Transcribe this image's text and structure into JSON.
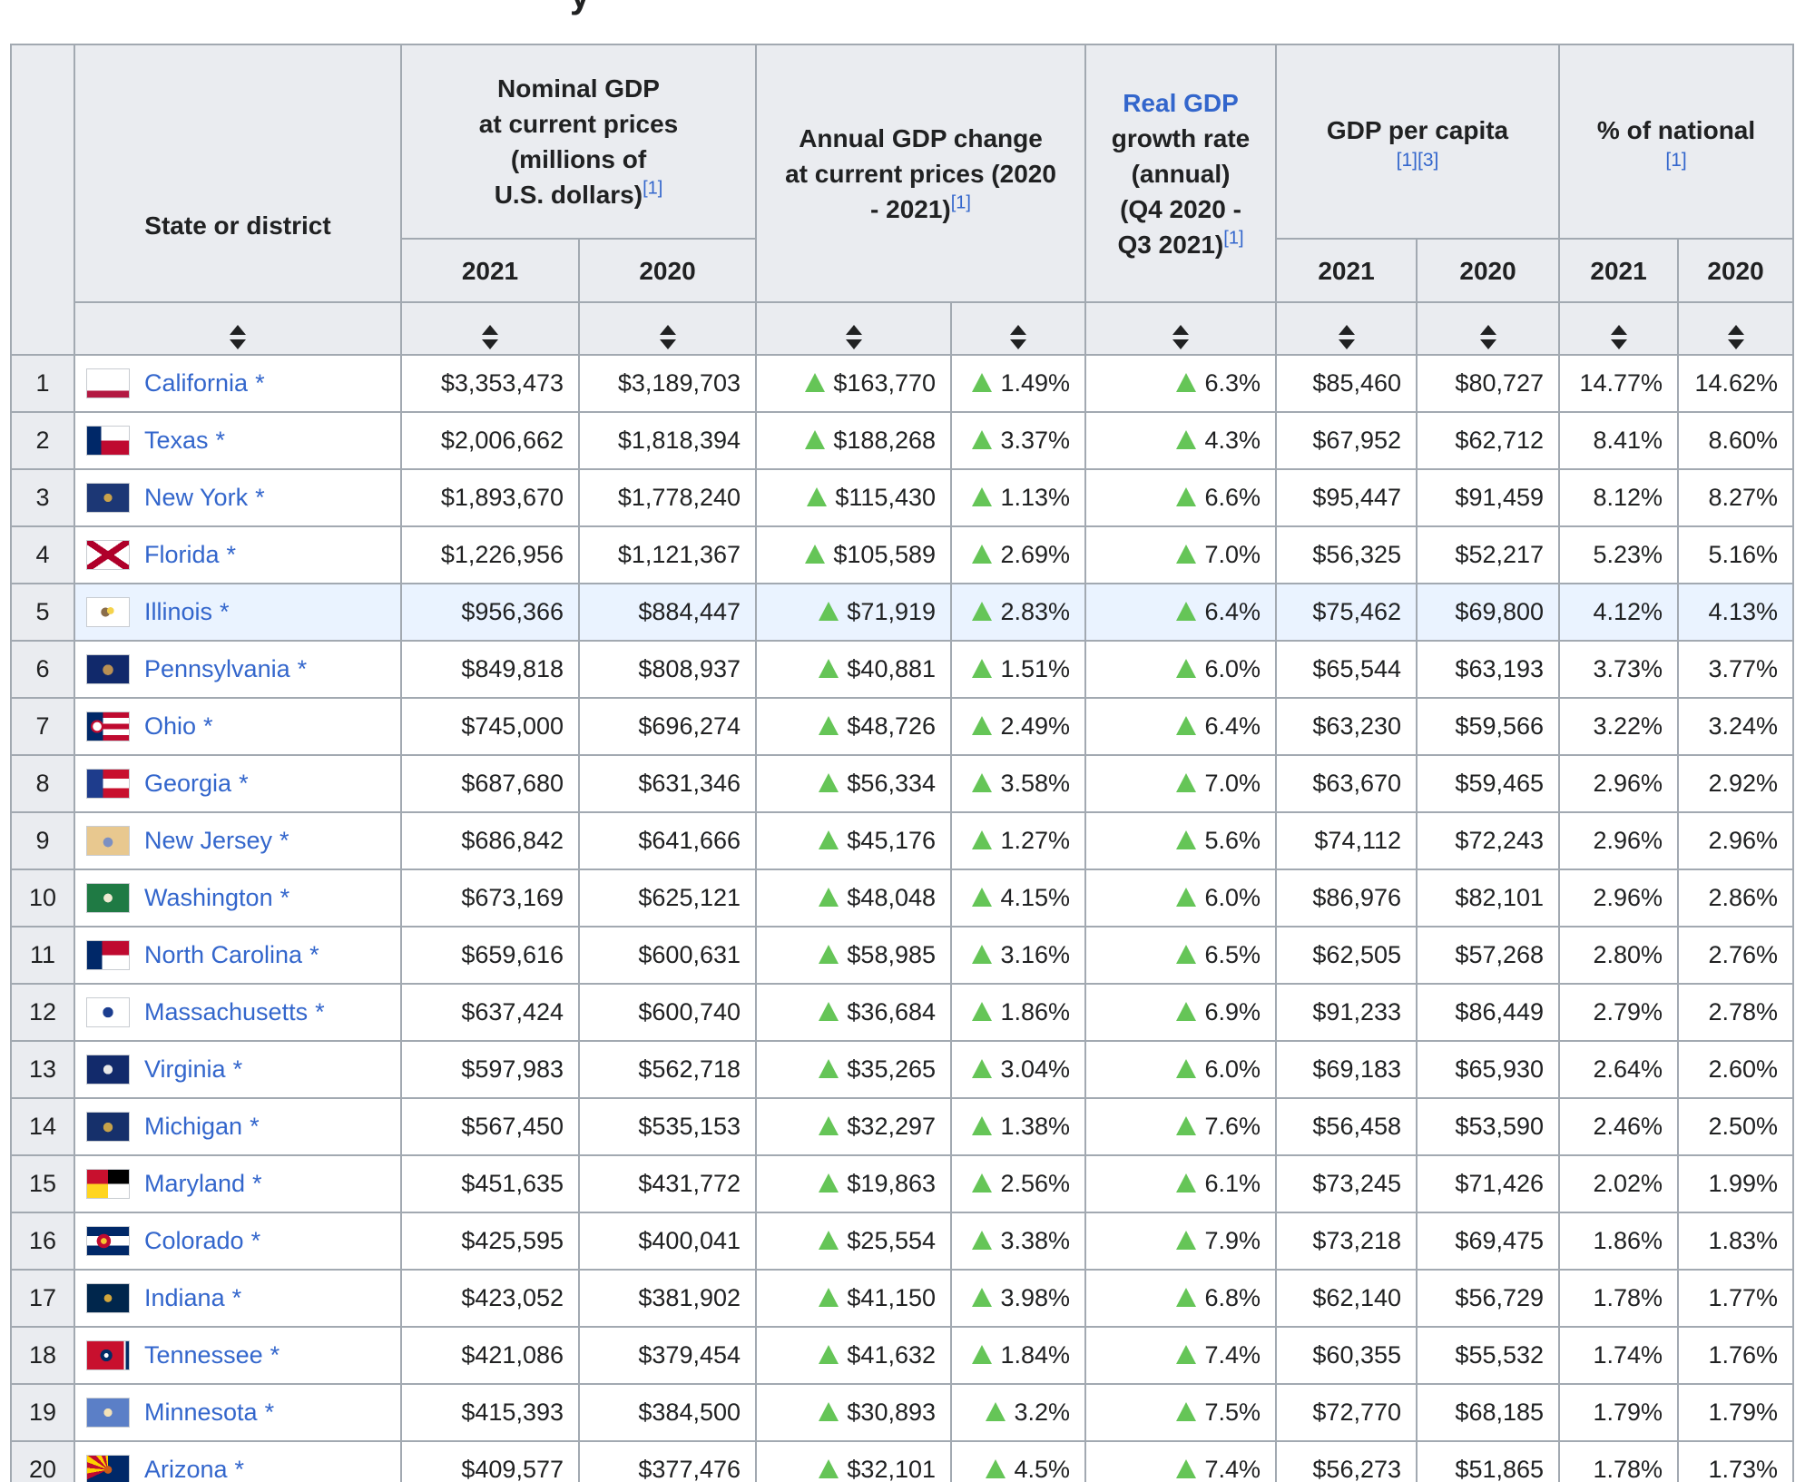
{
  "page": {
    "title_fragment": "y"
  },
  "table": {
    "header": {
      "state_col": "State or district",
      "nominal_label": "Nominal GDP\nat current prices\n(millions of\nU.S. dollars)",
      "nominal_ref": "[1]",
      "annual_label": "Annual GDP change\nat current prices (2020\n- 2021)",
      "annual_ref": "[1]",
      "real_link": "Real GDP",
      "real_rest": "growth rate\n(annual)\n(Q4 2020 -\nQ3 2021)",
      "real_ref": "[1]",
      "capita_label": "GDP per capita",
      "capita_refs": "[1][3]",
      "national_label": "% of national",
      "national_ref": "[1]",
      "y2021": "2021",
      "y2020": "2020"
    },
    "colors": {
      "link_blue": "#3366cc",
      "increase_green": "#65c557",
      "header_bg": "#eaecf0",
      "highlight_row_bg": "#eaf3ff",
      "border": "#a2a9b1"
    },
    "rows": [
      {
        "rank": "1",
        "state": "California",
        "asterisk": "*",
        "highlight": false,
        "flag": "linear-gradient(to bottom, #ffffff 0 76%, #b31942 76% 100%)",
        "gdp2021": "$3,353,473",
        "gdp2020": "$3,189,703",
        "change_abs": "$163,770",
        "change_pct": "1.49%",
        "real_growth": "6.3%",
        "capita2021": "$85,460",
        "capita2020": "$80,727",
        "national2021": "14.77%",
        "national2020": "14.62%"
      },
      {
        "rank": "2",
        "state": "Texas",
        "asterisk": "*",
        "highlight": false,
        "flag": "linear-gradient(to right, #002868 0 34%, transparent 34%), linear-gradient(to bottom, #ffffff 0 50%, #bf0a30 50%)",
        "gdp2021": "$2,006,662",
        "gdp2020": "$1,818,394",
        "change_abs": "$188,268",
        "change_pct": "3.37%",
        "real_growth": "4.3%",
        "capita2021": "$67,952",
        "capita2020": "$62,712",
        "national2021": "8.41%",
        "national2020": "8.60%"
      },
      {
        "rank": "3",
        "state": "New York",
        "asterisk": "*",
        "highlight": false,
        "flag": "radial-gradient(circle at 50% 50%, #c9a24b 0 16%, #1c3775 17%)",
        "gdp2021": "$1,893,670",
        "gdp2020": "$1,778,240",
        "change_abs": "$115,430",
        "change_pct": "1.13%",
        "real_growth": "6.6%",
        "capita2021": "$95,447",
        "capita2020": "$91,459",
        "national2021": "8.12%",
        "national2020": "8.27%"
      },
      {
        "rank": "4",
        "state": "Florida",
        "asterisk": "*",
        "highlight": false,
        "flag": "linear-gradient(to bottom right, transparent 43%, #af002a 43% 57%, transparent 57%), linear-gradient(to top right, transparent 43%, #af002a 43% 57%, transparent 57%), linear-gradient(#ffffff,#ffffff)",
        "gdp2021": "$1,226,956",
        "gdp2020": "$1,121,367",
        "change_abs": "$105,589",
        "change_pct": "2.69%",
        "real_growth": "7.0%",
        "capita2021": "$56,325",
        "capita2020": "$52,217",
        "national2021": "5.23%",
        "national2020": "5.16%"
      },
      {
        "rank": "5",
        "state": "Illinois",
        "asterisk": "*",
        "highlight": true,
        "flag": "radial-gradient(circle at 56% 45%, #f5d34c 0 12%, transparent 13%), radial-gradient(circle at 44% 50%, #8a6d4b 0 16%, #ffffff 17%)",
        "gdp2021": "$956,366",
        "gdp2020": "$884,447",
        "change_abs": "$71,919",
        "change_pct": "2.83%",
        "real_growth": "6.4%",
        "capita2021": "$75,462",
        "capita2020": "$69,800",
        "national2021": "4.12%",
        "national2020": "4.13%"
      },
      {
        "rank": "6",
        "state": "Pennsylvania",
        "asterisk": "*",
        "highlight": false,
        "flag": "radial-gradient(circle at 50% 52%, #b99054 0 20%, #11296b 21%)",
        "gdp2021": "$849,818",
        "gdp2020": "$808,937",
        "change_abs": "$40,881",
        "change_pct": "1.51%",
        "real_growth": "6.0%",
        "capita2021": "$65,544",
        "capita2020": "$63,193",
        "national2021": "3.73%",
        "national2020": "3.77%"
      },
      {
        "rank": "7",
        "state": "Ohio",
        "asterisk": "*",
        "highlight": false,
        "flag": "radial-gradient(circle at 24% 50%, #ffffff 0 12%, #bf0a30 13% 18%, transparent 19%), linear-gradient(to right, #002868 0 38%, transparent 38%), repeating-linear-gradient(to bottom, #bf0a30 0 20%, #ffffff 20% 40%)",
        "gdp2021": "$745,000",
        "gdp2020": "$696,274",
        "change_abs": "$48,726",
        "change_pct": "2.49%",
        "real_growth": "6.4%",
        "capita2021": "$63,230",
        "capita2020": "$59,566",
        "national2021": "3.22%",
        "national2020": "3.24%"
      },
      {
        "rank": "8",
        "state": "Georgia",
        "asterisk": "*",
        "highlight": false,
        "flag": "linear-gradient(to right, #1e3c8c 0 38%, transparent 38%), linear-gradient(to bottom, #c8102e 0 33%, #ffffff 33% 66%, #c8102e 66%)",
        "gdp2021": "$687,680",
        "gdp2020": "$631,346",
        "change_abs": "$56,334",
        "change_pct": "3.58%",
        "real_growth": "7.0%",
        "capita2021": "$63,670",
        "capita2020": "$59,465",
        "national2021": "2.96%",
        "national2020": "2.92%"
      },
      {
        "rank": "9",
        "state": "New Jersey",
        "asterisk": "*",
        "highlight": false,
        "flag": "radial-gradient(circle at 50% 55%, #7c90c2 0 18%, #e8c88f 19%)",
        "gdp2021": "$686,842",
        "gdp2020": "$641,666",
        "change_abs": "$45,176",
        "change_pct": "1.27%",
        "real_growth": "5.6%",
        "capita2021": "$74,112",
        "capita2020": "$72,243",
        "national2021": "2.96%",
        "national2020": "2.96%"
      },
      {
        "rank": "10",
        "state": "Washington",
        "asterisk": "*",
        "highlight": false,
        "flag": "radial-gradient(circle at 50% 50%, #f0e9d2 0 17%, #1f7a44 18%)",
        "gdp2021": "$673,169",
        "gdp2020": "$625,121",
        "change_abs": "$48,048",
        "change_pct": "4.15%",
        "real_growth": "6.0%",
        "capita2021": "$86,976",
        "capita2020": "$82,101",
        "national2021": "2.96%",
        "national2020": "2.86%"
      },
      {
        "rank": "11",
        "state": "North Carolina",
        "asterisk": "*",
        "highlight": false,
        "flag": "linear-gradient(to right, #002868 0 36%, transparent 36%), linear-gradient(to bottom, #bf0a30 0 50%, #ffffff 50%)",
        "gdp2021": "$659,616",
        "gdp2020": "$600,631",
        "change_abs": "$58,985",
        "change_pct": "3.16%",
        "real_growth": "6.5%",
        "capita2021": "$62,505",
        "capita2020": "$57,268",
        "national2021": "2.80%",
        "national2020": "2.76%"
      },
      {
        "rank": "12",
        "state": "Massachusetts",
        "asterisk": "*",
        "highlight": false,
        "flag": "radial-gradient(circle at 50% 50%, #1b3d8f 0 20%, #ffffff 21%)",
        "gdp2021": "$637,424",
        "gdp2020": "$600,740",
        "change_abs": "$36,684",
        "change_pct": "1.86%",
        "real_growth": "6.9%",
        "capita2021": "$91,233",
        "capita2020": "$86,449",
        "national2021": "2.79%",
        "national2020": "2.78%"
      },
      {
        "rank": "13",
        "state": "Virginia",
        "asterisk": "*",
        "highlight": false,
        "flag": "radial-gradient(circle at 50% 50%, #e8e8e8 0 18%, #122a6b 19%)",
        "gdp2021": "$597,983",
        "gdp2020": "$562,718",
        "change_abs": "$35,265",
        "change_pct": "3.04%",
        "real_growth": "6.0%",
        "capita2021": "$69,183",
        "capita2020": "$65,930",
        "national2021": "2.64%",
        "national2020": "2.60%"
      },
      {
        "rank": "14",
        "state": "Michigan",
        "asterisk": "*",
        "highlight": false,
        "flag": "radial-gradient(circle at 50% 52%, #c7a24a 0 18%, #16306b 19%)",
        "gdp2021": "$567,450",
        "gdp2020": "$535,153",
        "change_abs": "$32,297",
        "change_pct": "1.38%",
        "real_growth": "7.6%",
        "capita2021": "$56,458",
        "capita2020": "$53,590",
        "national2021": "2.46%",
        "national2020": "2.50%"
      },
      {
        "rank": "15",
        "state": "Maryland",
        "asterisk": "*",
        "highlight": false,
        "flag": "conic-gradient(#000000 0 25%, #ffffff 25% 50%, #ffd520 50% 75%, #c8102e 75%)",
        "gdp2021": "$451,635",
        "gdp2020": "$431,772",
        "change_abs": "$19,863",
        "change_pct": "2.56%",
        "real_growth": "6.1%",
        "capita2021": "$73,245",
        "capita2020": "$71,426",
        "national2021": "2.02%",
        "national2020": "1.99%"
      },
      {
        "rank": "16",
        "state": "Colorado",
        "asterisk": "*",
        "highlight": false,
        "flag": "radial-gradient(circle at 40% 50%, #f5c531 0 10%, #bf0a30 11% 24%, transparent 25%), linear-gradient(to bottom, #002868 0 33%, #ffffff 33% 66%, #002868 66%)",
        "gdp2021": "$425,595",
        "gdp2020": "$400,041",
        "change_abs": "$25,554",
        "change_pct": "3.38%",
        "real_growth": "7.9%",
        "capita2021": "$73,218",
        "capita2020": "$69,475",
        "national2021": "1.86%",
        "national2020": "1.83%"
      },
      {
        "rank": "17",
        "state": "Indiana",
        "asterisk": "*",
        "highlight": false,
        "flag": "radial-gradient(circle at 50% 50%, #d2a63c 0 15%, #00264c 16%)",
        "gdp2021": "$423,052",
        "gdp2020": "$381,902",
        "change_abs": "$41,150",
        "change_pct": "3.98%",
        "real_growth": "6.8%",
        "capita2021": "$62,140",
        "capita2020": "$56,729",
        "national2021": "1.78%",
        "national2020": "1.77%"
      },
      {
        "rank": "18",
        "state": "Tennessee",
        "asterisk": "*",
        "highlight": false,
        "flag": "radial-gradient(circle at 46% 50%, #ffffff 0 8%, #002d65 9% 22%, transparent 23%), linear-gradient(to right, #c8102e 0 88%, #ffffff 88% 92%, #002d65 92%)",
        "gdp2021": "$421,086",
        "gdp2020": "$379,454",
        "change_abs": "$41,632",
        "change_pct": "1.84%",
        "real_growth": "7.4%",
        "capita2021": "$60,355",
        "capita2020": "$55,532",
        "national2021": "1.74%",
        "national2020": "1.76%"
      },
      {
        "rank": "19",
        "state": "Minnesota",
        "asterisk": "*",
        "highlight": false,
        "flag": "radial-gradient(circle at 50% 50%, #f3e2b8 0 16%, #5b7fc7 17%)",
        "gdp2021": "$415,393",
        "gdp2020": "$384,500",
        "change_abs": "$30,893",
        "change_pct": "3.2%",
        "real_growth": "7.5%",
        "capita2021": "$72,770",
        "capita2020": "$68,185",
        "national2021": "1.79%",
        "national2020": "1.79%"
      },
      {
        "rank": "20",
        "state": "Arizona",
        "asterisk": "*",
        "highlight": false,
        "flag": "radial-gradient(circle at 50% 50%, #ce5c17 0 15%, transparent 16%), conic-gradient(from 245deg at 50% 50%, #bf0a30 0 15deg, #fed100 15deg 30deg, #bf0a30 30deg 45deg, #fed100 45deg 60deg, #bf0a30 60deg 75deg, #fed100 75deg 90deg, #bf0a30 90deg 105deg, #fed100 105deg 115deg, #002868 115deg 245deg)",
        "gdp2021": "$409,577",
        "gdp2020": "$377,476",
        "change_abs": "$32,101",
        "change_pct": "4.5%",
        "real_growth": "7.4%",
        "capita2021": "$56,273",
        "capita2020": "$51,865",
        "national2021": "1.78%",
        "national2020": "1.73%"
      }
    ]
  }
}
